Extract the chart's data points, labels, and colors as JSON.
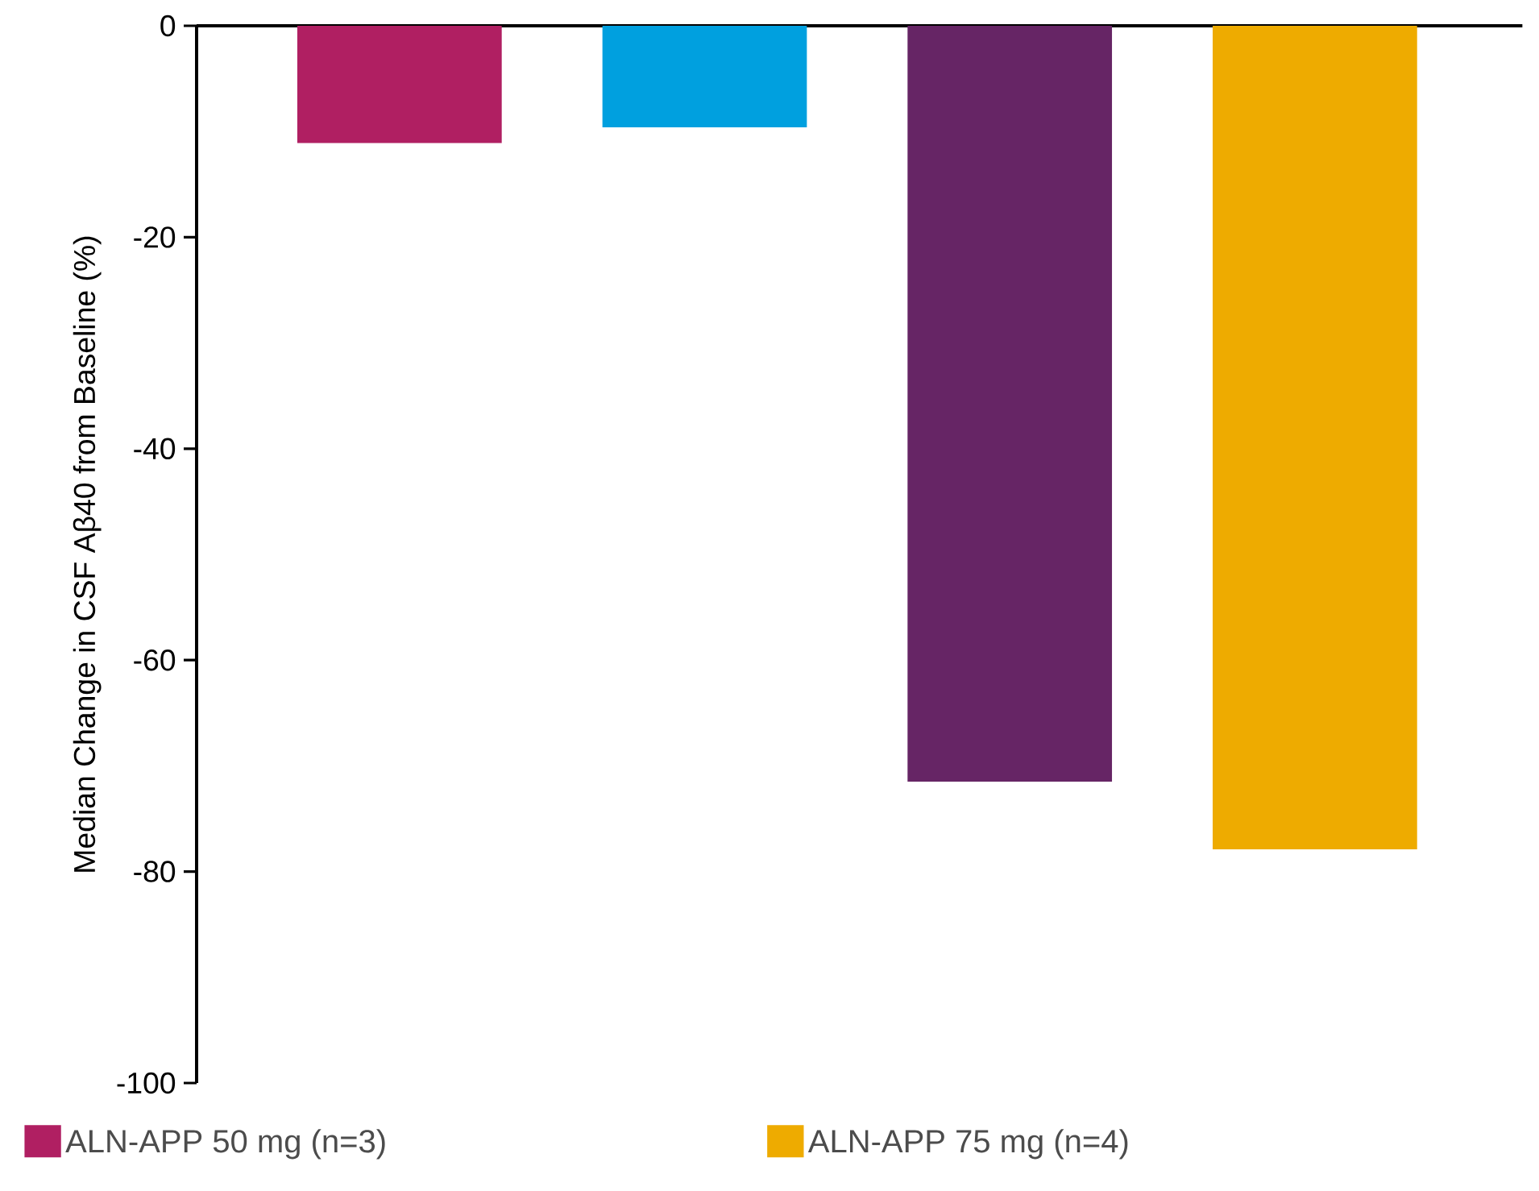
{
  "chart_data": {
    "type": "bar",
    "ylabel": "Median Change in CSF Aβ40 from Baseline (%)",
    "categories": [
      null,
      null,
      null,
      null
    ],
    "series": [
      {
        "name": "ALN-APP 50 mg (n=3)",
        "color": "#b01f62",
        "values": [
          -11.1,
          null,
          null,
          null
        ]
      },
      {
        "color": "#00a0df",
        "values": [
          null,
          -9.6,
          null,
          null
        ]
      },
      {
        "color": "#662565",
        "values": [
          null,
          null,
          -71.5,
          null
        ]
      },
      {
        "name": "ALN-APP 75 mg (n=4)",
        "color": "#eeab00",
        "values": [
          null,
          null,
          null,
          -77.9
        ]
      }
    ],
    "ylim": [
      -100,
      0
    ],
    "yticks": [
      -100,
      -80,
      -60,
      -40,
      -20,
      0
    ],
    "legend": "bottom",
    "tick_labels": "y"
  }
}
